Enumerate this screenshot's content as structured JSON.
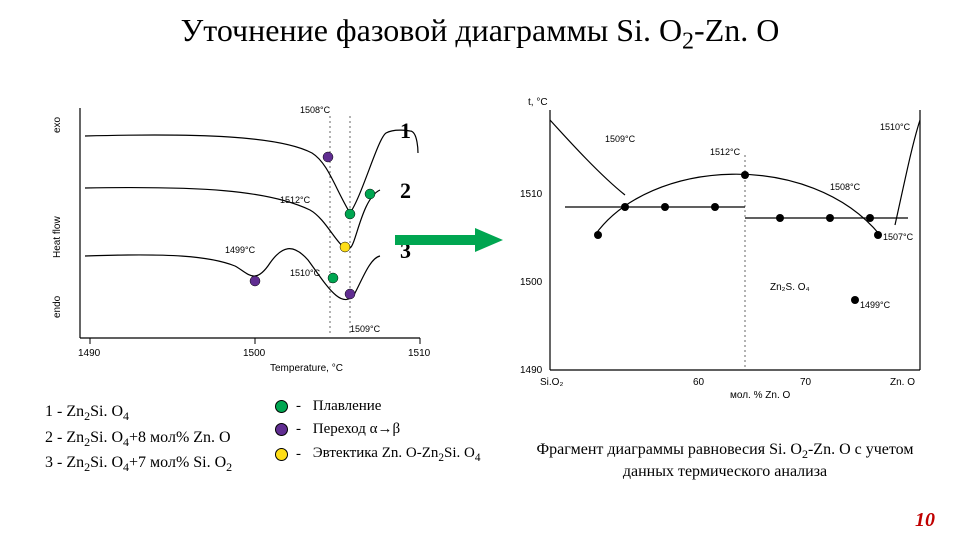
{
  "title_html": "Уточнение фазовой диаграммы Si. O<span class='sub'>2</span>-Zn. O",
  "page_number": "10",
  "colors": {
    "green": "#00a651",
    "purple": "#602d91",
    "yellow": "#ffde17",
    "black": "#000000",
    "red": "#c00000"
  },
  "dta": {
    "type": "thermal-analysis-curves",
    "x_label": "Temperature, °C",
    "y_label_top": "exo",
    "y_label_mid": "Heat flow",
    "y_label_bottom": "endo",
    "x_ticks": [
      1490,
      1500,
      1510
    ],
    "curve_labels": [
      "1",
      "2",
      "3"
    ],
    "point_labels": {
      "t1508": "1508°C",
      "t1512": "1512°C",
      "t1499": "1499°C",
      "t1510": "1510°C",
      "t1509": "1509°C"
    }
  },
  "phase": {
    "type": "phase-diagram",
    "y_label": "t, °C",
    "x_label": "мол. % Zn. O",
    "x_ticks": [
      "60",
      "70"
    ],
    "x_left": "Si.O₂",
    "x_right": "Zn. O",
    "y_ticks": [
      "1490",
      "1500",
      "1510"
    ],
    "temps": {
      "1509": "1509°C",
      "1510": "1510°C",
      "1512": "1512°C",
      "1508": "1508°C",
      "1507": "1507°C",
      "1499": "1499°C"
    },
    "compound": "Zn₂S. O₄"
  },
  "legend": {
    "l1": "1 -  Zn₂Si. O₄",
    "l2": "2  - Zn₂Si. O₄+8 мол% Zn. O",
    "l3": "3 - Zn₂Si. O₄+7 мол% Si. O₂"
  },
  "marker_legend": {
    "m1": "Плавление",
    "m2": "Переход α→β",
    "m3": "Эвтектика Zn. O-Zn₂Si. O₄"
  },
  "right_caption": "Фрагмент диаграммы равновесия Si. O₂-Zn. O с учетом данных термического анализа"
}
